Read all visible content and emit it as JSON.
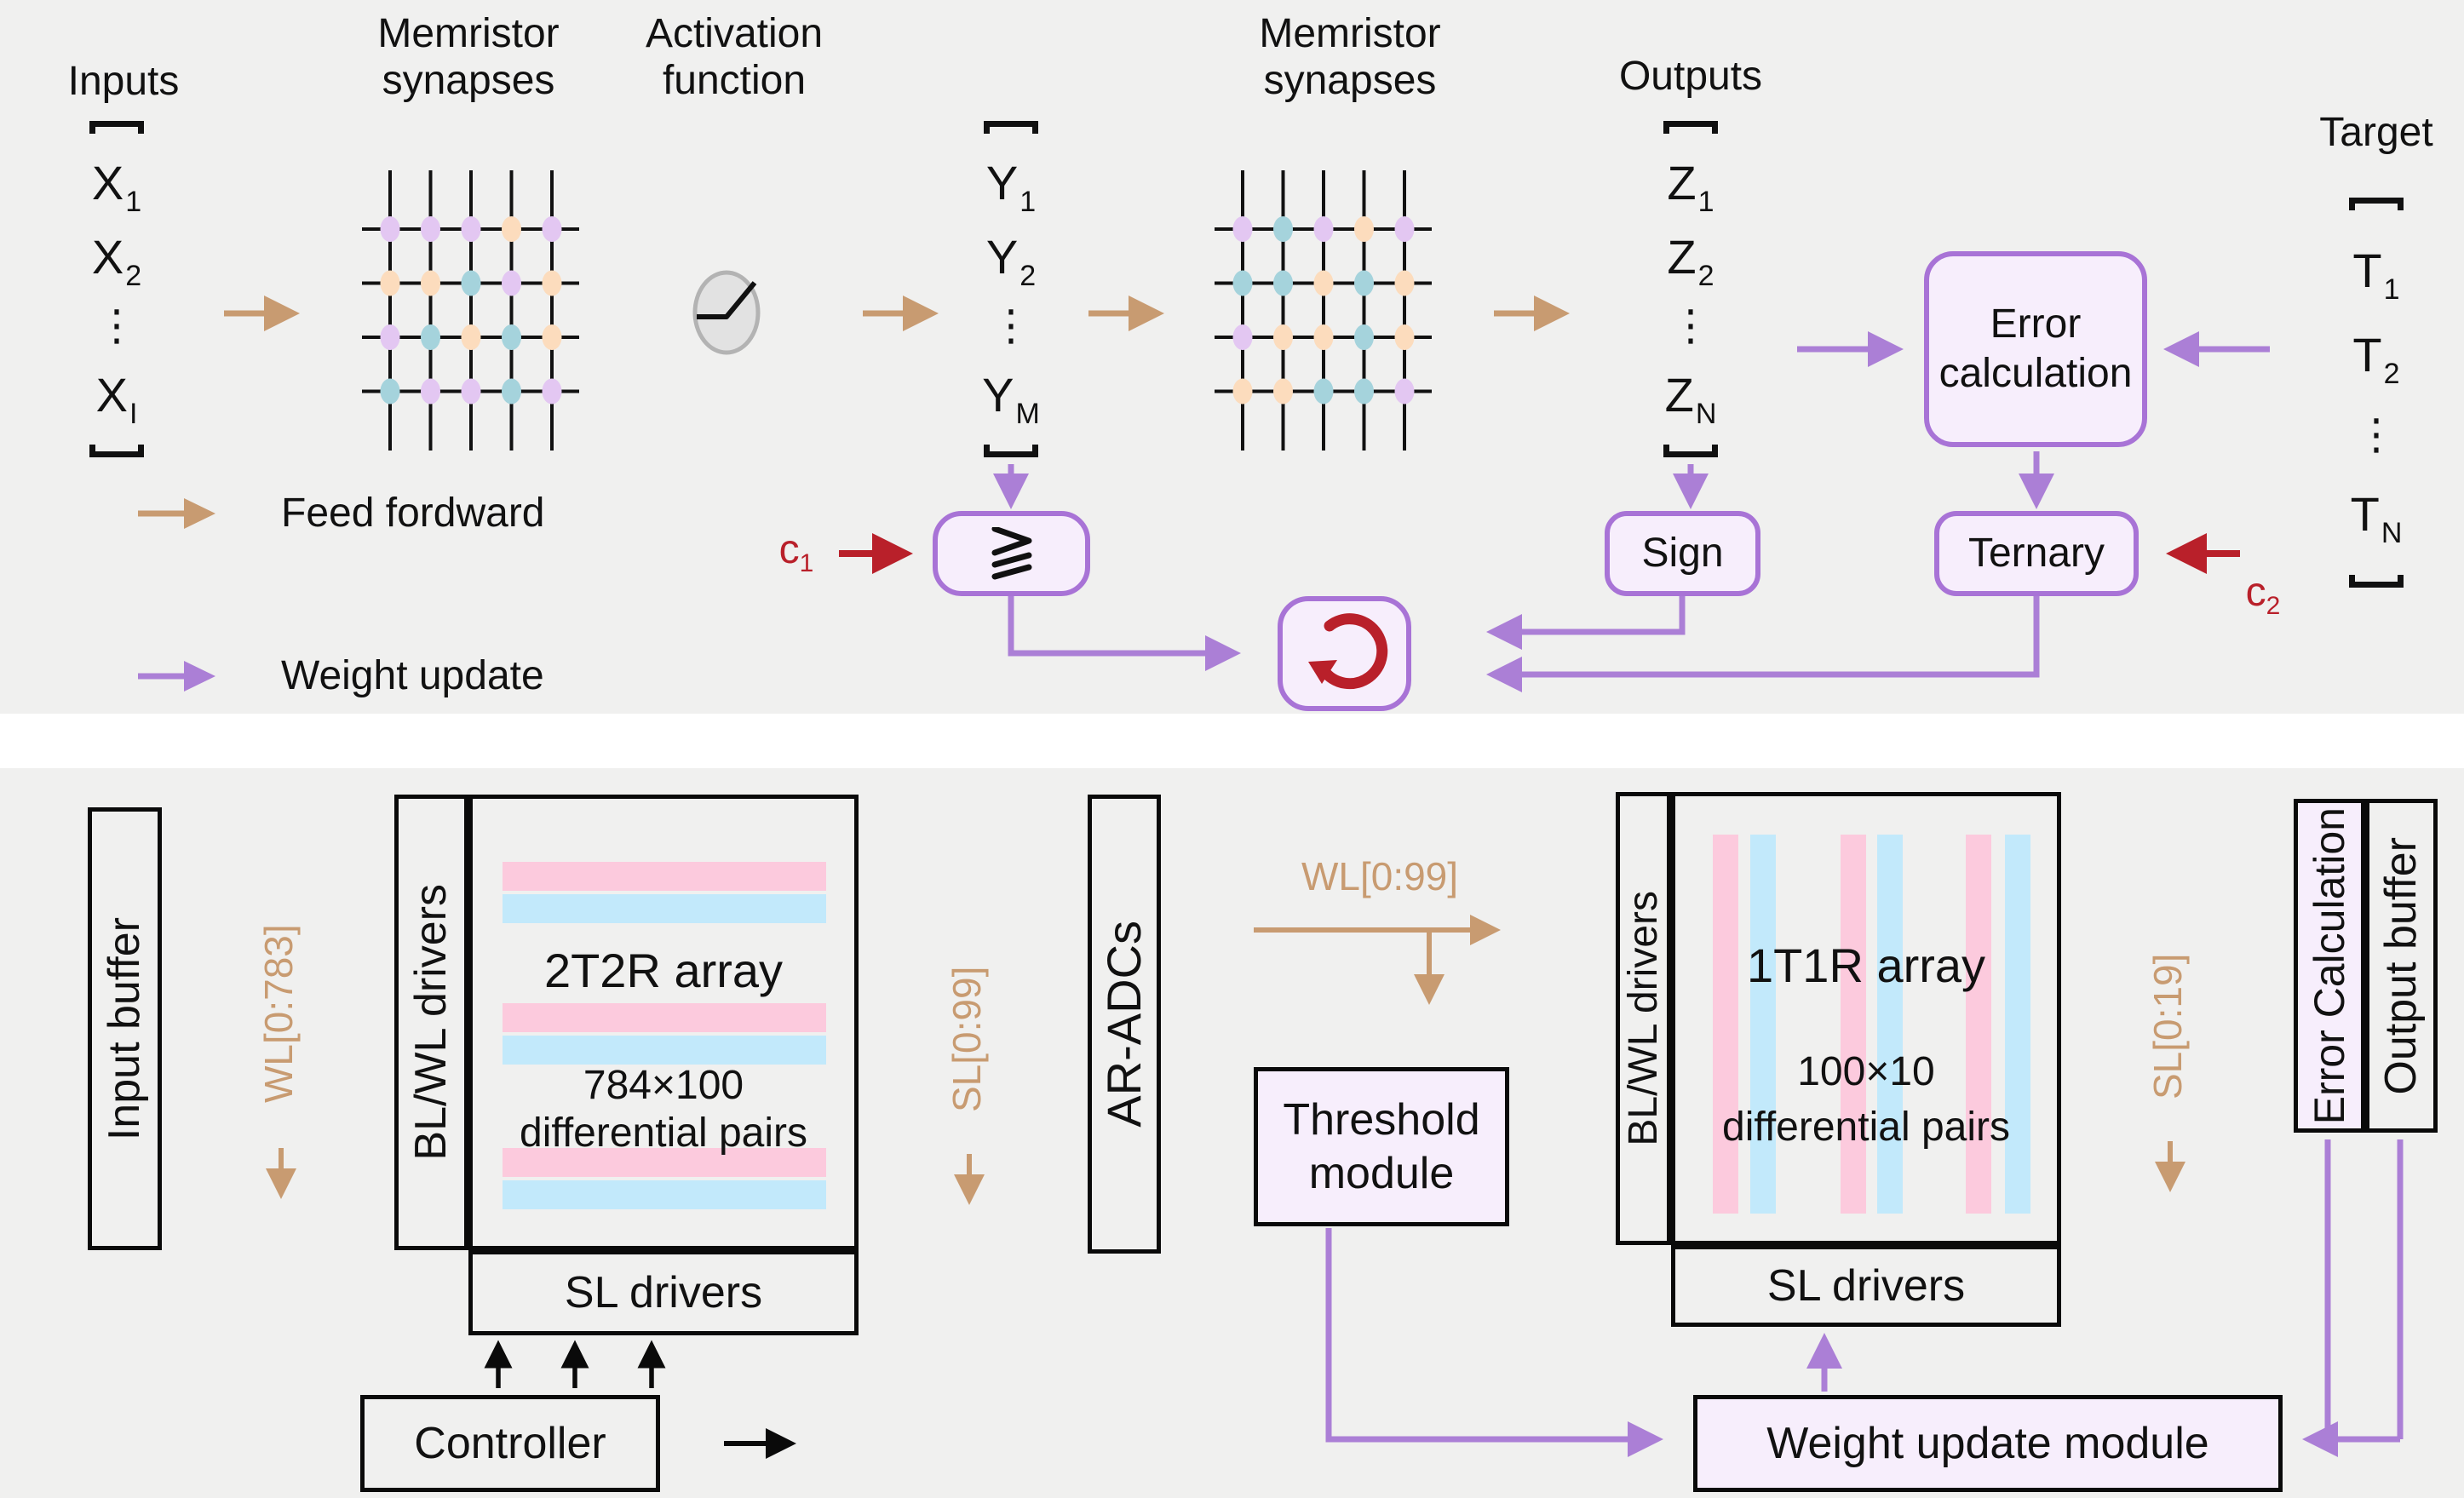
{
  "top_panel": {
    "labels": {
      "inputs": "Inputs",
      "memristor1": "Memristor\nsynapses",
      "activation": "Activation\nfunction",
      "memristor2": "Memristor\nsynapses",
      "outputs": "Outputs",
      "target": "Target"
    },
    "vectors": {
      "inputs": [
        [
          "X",
          "1"
        ],
        [
          "X",
          "2"
        ],
        [
          "⋮",
          ""
        ],
        [
          "X",
          "I"
        ]
      ],
      "hidden": [
        [
          "Y",
          "1"
        ],
        [
          "Y",
          "2"
        ],
        [
          "⋮",
          ""
        ],
        [
          "Y",
          "M"
        ]
      ],
      "outputs": [
        [
          "Z",
          "1"
        ],
        [
          "Z",
          "2"
        ],
        [
          "⋮",
          ""
        ],
        [
          "Z",
          "N"
        ]
      ],
      "target": [
        [
          "T",
          "1"
        ],
        [
          "T",
          "2"
        ],
        [
          "⋮",
          ""
        ],
        [
          "T",
          "N"
        ]
      ]
    },
    "crossbar1": [
      [
        "P",
        "P",
        "P",
        "O",
        "P"
      ],
      [
        "O",
        "O",
        "T",
        "P",
        "O"
      ],
      [
        "P",
        "T",
        "O",
        "T",
        "O"
      ],
      [
        "T",
        "P",
        "P",
        "T",
        "P"
      ]
    ],
    "crossbar2": [
      [
        "P",
        "T",
        "P",
        "O",
        "P"
      ],
      [
        "T",
        "T",
        "O",
        "T",
        "O"
      ],
      [
        "P",
        "O",
        "O",
        "T",
        "O"
      ],
      [
        "O",
        "O",
        "T",
        "T",
        "P"
      ]
    ],
    "boxes": {
      "error_calc": "Error\ncalculation",
      "sign": "Sign",
      "ternary": "Ternary"
    },
    "annotations": {
      "c1_base": "c",
      "c1_sub": "1",
      "c2_base": "c",
      "c2_sub": "2"
    },
    "legend": [
      {
        "color": "tan",
        "label": "Feed fordward"
      },
      {
        "color": "purple",
        "label": "Weight update"
      }
    ]
  },
  "bottom_panel": {
    "modules": {
      "input_buffer": "Input buffer",
      "blwl_left": "BL/WL drivers",
      "array_left_title": "2T2R array",
      "array_left_sub1": "784×100",
      "array_left_sub2": "differential pairs",
      "sl_left": "SL drivers",
      "controller": "Controller",
      "ar_adcs": "AR-ADCs",
      "threshold": "Threshold\nmodule",
      "blwl_right": "BL/WL drivers",
      "array_right_title": "1T1R array",
      "array_right_sub1": "100×10",
      "array_right_sub2": "differential pairs",
      "sl_right": "SL drivers",
      "weight_update": "Weight update module",
      "error_calc": "Error Calculation",
      "output_buffer": "Output buffer"
    },
    "signals": {
      "wl783": "WL[0:783]",
      "sl99": "SL[0:99]",
      "wl99": "WL[0:99]",
      "sl19": "SL[0:19]"
    }
  },
  "colors": {
    "panel_bg": "#f0f0ef",
    "feed_forward": "#c89b71",
    "weight_update": "#ab7fd6",
    "box_border": "#a873d6",
    "box_fill": "#f7eefc",
    "red": "#b9202a",
    "black": "#0a0a0a",
    "dots": {
      "P": "#e3c7f2",
      "O": "#fcdcbd",
      "T": "#a5d3dc"
    },
    "stripe_pink": "#fccadd",
    "stripe_blue": "#c2e9fb"
  }
}
